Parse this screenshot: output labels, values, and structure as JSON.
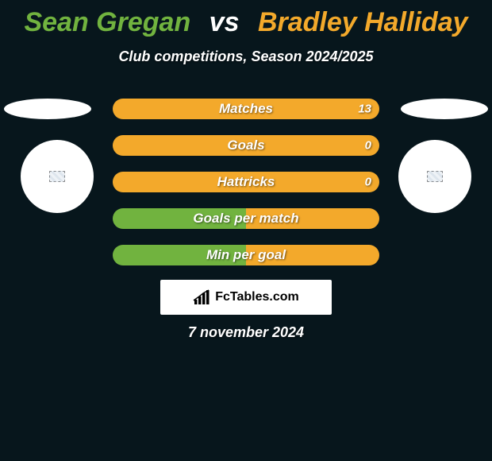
{
  "title": {
    "player1": "Sean Gregan",
    "vs": "vs",
    "player2": "Bradley Halliday",
    "player1_color": "#71b33f",
    "player2_color": "#f3a92b"
  },
  "subtitle": "Club competitions, Season 2024/2025",
  "background_color": "#07161c",
  "bars": {
    "left_color": "#71b33f",
    "right_color": "#f3a92b",
    "rows": [
      {
        "label": "Matches",
        "left": "",
        "right": "13",
        "left_pct": 0,
        "right_pct": 100
      },
      {
        "label": "Goals",
        "left": "",
        "right": "0",
        "left_pct": 0,
        "right_pct": 100
      },
      {
        "label": "Hattricks",
        "left": "",
        "right": "0",
        "left_pct": 0,
        "right_pct": 100
      },
      {
        "label": "Goals per match",
        "left": "",
        "right": "",
        "left_pct": 50,
        "right_pct": 50
      },
      {
        "label": "Min per goal",
        "left": "",
        "right": "",
        "left_pct": 50,
        "right_pct": 50
      }
    ]
  },
  "brand": "FcTables.com",
  "date": "7 november 2024"
}
